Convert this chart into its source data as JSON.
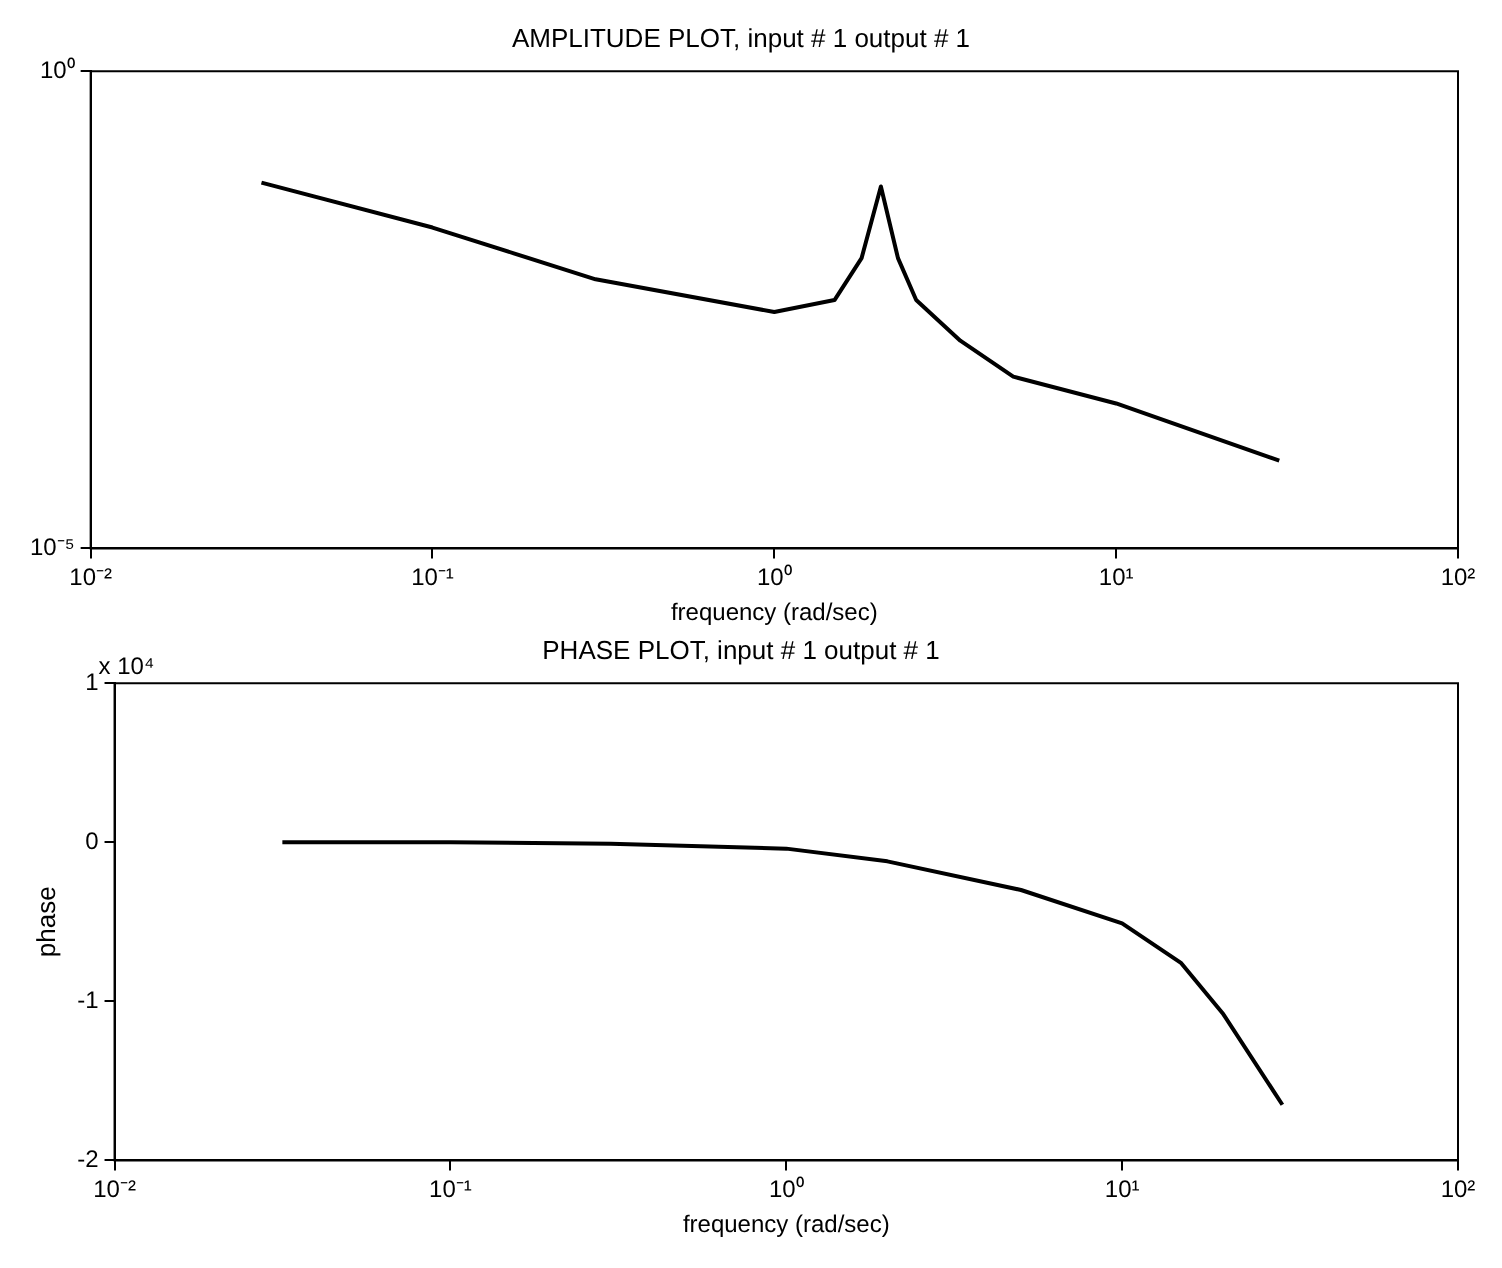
{
  "chart_data": [
    {
      "type": "line",
      "title": "AMPLITUDE PLOT, input # 1 output # 1",
      "xlabel": "frequency (rad/sec)",
      "log": "xy",
      "marker": "none",
      "xlim": [
        0.01,
        100
      ],
      "xticks": [
        {
          "value": 0.01,
          "label": "10⁻²"
        },
        {
          "value": 0.1,
          "label": "10⁻¹"
        },
        {
          "value": 1,
          "label": "10⁰"
        },
        {
          "value": 10,
          "label": "10¹"
        },
        {
          "value": 100,
          "label": "10²"
        }
      ],
      "ylim": [
        1e-05,
        1
      ],
      "yticks": [
        {
          "value": 1e-05,
          "label": "10⁻⁵"
        },
        {
          "value": 1,
          "label": "10⁰"
        }
      ],
      "series": [
        {
          "color": "#000000",
          "x": [
            0.0316,
            0.1,
            0.3,
            1,
            1.5,
            1.8,
            2.05,
            2.3,
            2.6,
            3.5,
            5,
            10,
            30
          ],
          "values": [
            0.068,
            0.023,
            0.0066,
            0.003,
            0.004,
            0.011,
            0.062,
            0.011,
            0.004,
            0.0015,
            0.00063,
            0.00033,
            8.3e-05
          ]
        }
      ]
    },
    {
      "type": "line",
      "title": "PHASE PLOT, input # 1 output # 1",
      "xlabel": "frequency (rad/sec)",
      "ylabel": "phase",
      "log": "x",
      "marker": "none",
      "annotations": [
        "x 10⁴"
      ],
      "xlim": [
        0.01,
        100
      ],
      "xticks": [
        {
          "value": 0.01,
          "label": "10⁻²"
        },
        {
          "value": 0.1,
          "label": "10⁻¹"
        },
        {
          "value": 1,
          "label": "10⁰"
        },
        {
          "value": 10,
          "label": "10¹"
        },
        {
          "value": 100,
          "label": "10²"
        }
      ],
      "ylim": [
        -2,
        1
      ],
      "yticks": [
        -2,
        -1,
        0,
        1
      ],
      "series": [
        {
          "color": "#000000",
          "x": [
            0.0316,
            0.1,
            0.3,
            1,
            2,
            5,
            10,
            15,
            20,
            30
          ],
          "values": [
            0,
            0,
            -0.01,
            -0.04,
            -0.12,
            -0.3,
            -0.51,
            -0.76,
            -1.08,
            -1.65
          ]
        }
      ]
    }
  ]
}
